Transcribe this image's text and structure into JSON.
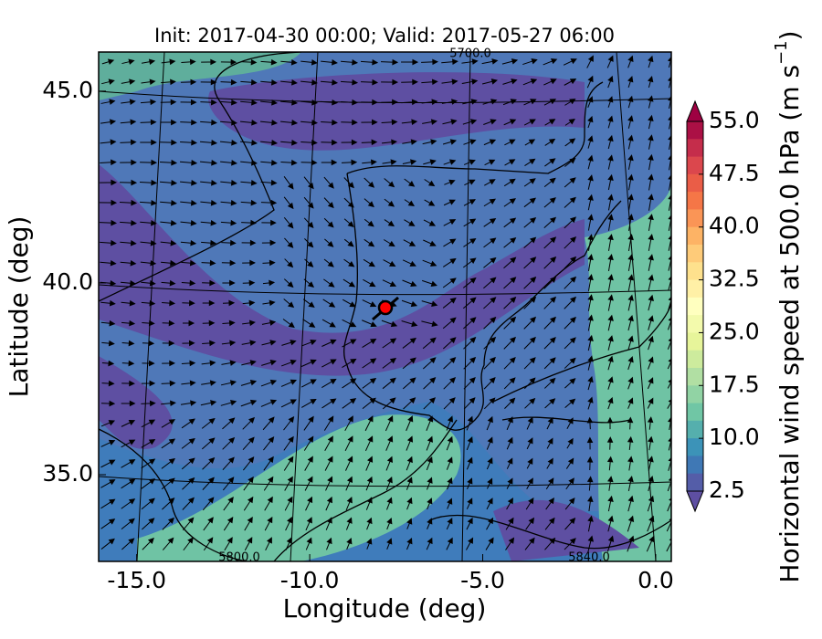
{
  "chart_data": {
    "type": "contour-map",
    "title": "Init: 2017-04-30 00:00; Valid: 2017-05-27 06:00",
    "xlabel": "Longitude (deg)",
    "ylabel": "Latitude (deg)",
    "xlim": [
      -16.1,
      0.45
    ],
    "ylim": [
      32.74,
      46.02
    ],
    "xticks": [
      {
        "value": -15,
        "label": "-15.0"
      },
      {
        "value": -10,
        "label": "-10.0"
      },
      {
        "value": -5,
        "label": "-5.0"
      },
      {
        "value": 0,
        "label": "0.0"
      }
    ],
    "yticks": [
      {
        "value": 35,
        "label": "35.0"
      },
      {
        "value": 40,
        "label": "40.0"
      },
      {
        "value": 45,
        "label": "45.0"
      }
    ],
    "contour_labels": [
      "5700.0",
      "5800.0",
      "5840.0"
    ],
    "colorbar": {
      "label": "Horizontal wind speed at 500.0 hPa (m s",
      "label_superscript": "−1",
      "label_suffix": ")",
      "lim": [
        2.5,
        55
      ],
      "step": 2.5,
      "colormap": [
        "#5e4fa2",
        "#3288bd",
        "#66c2a5",
        "#abdda4",
        "#e6f598",
        "#ffffbf",
        "#fee08b",
        "#fdae61",
        "#f46d43",
        "#d53e4f",
        "#9e0142"
      ],
      "ticks": [
        {
          "value": 2.5,
          "label": "2.5"
        },
        {
          "value": 10,
          "label": "10.0"
        },
        {
          "value": 17.5,
          "label": "17.5"
        },
        {
          "value": 25,
          "label": "25.0"
        },
        {
          "value": 32.5,
          "label": "32.5"
        },
        {
          "value": 40,
          "label": "40.0"
        },
        {
          "value": 47.5,
          "label": "47.5"
        },
        {
          "value": 55,
          "label": "55.0"
        }
      ]
    }
  }
}
